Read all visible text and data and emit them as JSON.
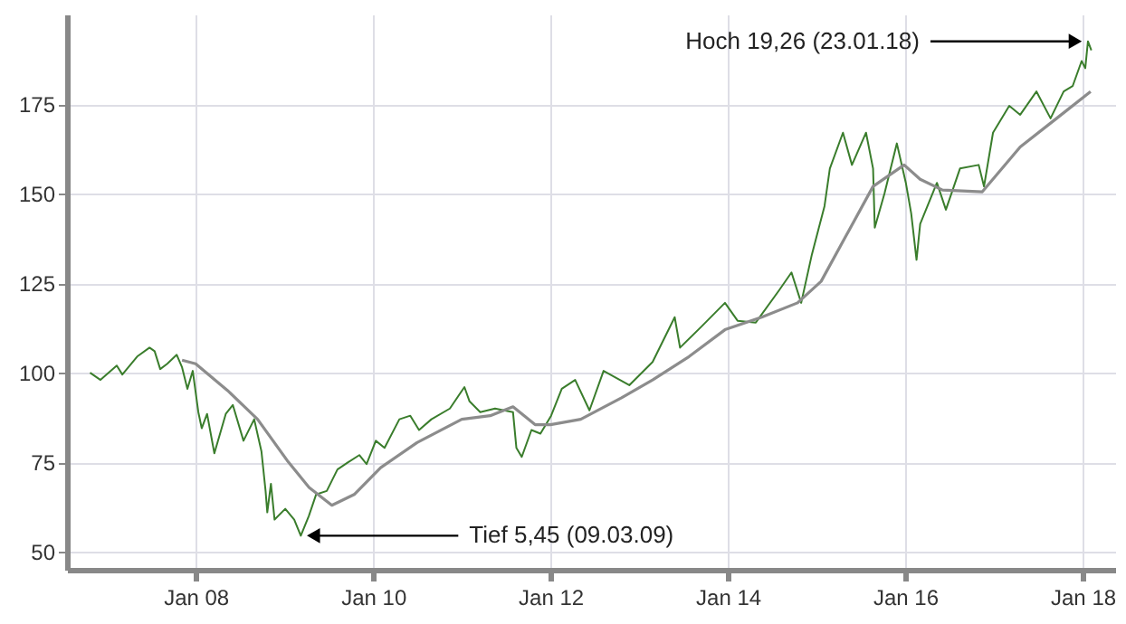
{
  "chart_data": {
    "type": "line",
    "xlim": [
      "2006-07-20",
      "2018-05-15"
    ],
    "xticks": [
      {
        "value": "2008-01-01",
        "label": "Jan 08"
      },
      {
        "value": "2010-01-01",
        "label": "Jan 10"
      },
      {
        "value": "2012-01-01",
        "label": "Jan 12"
      },
      {
        "value": "2014-01-01",
        "label": "Jan 14"
      },
      {
        "value": "2016-01-01",
        "label": "Jan 16"
      },
      {
        "value": "2018-01-01",
        "label": "Jan 18"
      }
    ],
    "ylim": [
      45,
      200
    ],
    "yticks": [
      50,
      75,
      100,
      125,
      150,
      175
    ],
    "grid": true,
    "annotations": [
      {
        "text": "Hoch 19,26 (23.01.18)",
        "x": "2018-01-23",
        "y": 192.5
      },
      {
        "text": "Tief 5,45 (09.03.09)",
        "x": "2009-03-09",
        "y": 54.5
      }
    ],
    "series": [
      {
        "color": "#3a7d2c",
        "x": [
          "2006-10-23",
          "2006-12-05",
          "2007-02-10",
          "2007-03-05",
          "2007-05-05",
          "2007-06-25",
          "2007-07-16",
          "2007-08-08",
          "2007-09-06",
          "2007-10-15",
          "2007-11-06",
          "2007-11-28",
          "2007-12-20",
          "2008-01-12",
          "2008-01-26",
          "2008-02-17",
          "2008-03-18",
          "2008-05-04",
          "2008-06-02",
          "2008-07-16",
          "2008-08-29",
          "2008-09-28",
          "2008-10-15",
          "2008-10-22",
          "2008-11-06",
          "2008-11-21",
          "2009-01-04",
          "2009-02-10",
          "2009-03-09",
          "2009-04-11",
          "2009-05-11",
          "2009-06-24",
          "2009-08-07",
          "2009-09-20",
          "2009-11-05",
          "2009-12-05",
          "2010-01-12",
          "2010-02-17",
          "2010-04-19",
          "2010-06-03",
          "2010-07-09",
          "2010-08-29",
          "2010-11-13",
          "2011-01-12",
          "2011-02-02",
          "2011-03-18",
          "2011-05-18",
          "2011-07-31",
          "2011-08-14",
          "2011-09-05",
          "2011-10-15",
          "2011-11-21",
          "2012-01-04",
          "2012-02-17",
          "2012-04-12",
          "2012-06-10",
          "2012-08-07",
          "2012-11-21",
          "2013-02-25",
          "2013-05-27",
          "2013-06-18",
          "2013-09-16",
          "2013-12-20",
          "2014-02-10",
          "2014-04-26",
          "2014-07-31",
          "2014-09-20",
          "2014-10-30",
          "2014-12-13",
          "2015-02-03",
          "2015-02-25",
          "2015-04-20",
          "2015-05-27",
          "2015-07-24",
          "2015-08-22",
          "2015-08-29",
          "2015-10-08",
          "2015-11-28",
          "2016-01-04",
          "2016-01-26",
          "2016-02-17",
          "2016-03-03",
          "2016-05-11",
          "2016-06-17",
          "2016-08-14",
          "2016-10-30",
          "2016-11-21",
          "2016-12-28",
          "2017-03-05",
          "2017-04-19",
          "2017-06-25",
          "2017-08-22",
          "2017-10-15",
          "2017-11-21",
          "2017-12-28",
          "2018-01-12",
          "2018-01-23",
          "2018-02-06"
        ],
        "values": [
          100,
          98,
          102,
          99.5,
          104.5,
          107,
          106,
          101,
          102.5,
          105,
          101.5,
          95.5,
          100.5,
          89,
          84.5,
          88.5,
          77.5,
          88.5,
          91,
          81,
          87,
          78,
          67,
          61,
          69,
          59,
          62,
          59,
          54.5,
          60,
          66,
          67,
          73,
          75,
          77,
          74.5,
          81,
          79,
          87,
          88,
          84,
          87,
          90,
          96,
          92,
          89,
          90,
          89,
          79,
          76.5,
          84,
          83,
          88,
          95.5,
          98,
          89.5,
          100.5,
          96.5,
          103,
          115.5,
          107,
          113,
          119.5,
          114.5,
          114,
          123,
          128,
          119.5,
          133,
          146.5,
          157,
          167,
          158,
          167,
          157,
          140.5,
          150,
          164,
          153,
          144.5,
          131.5,
          141.5,
          153,
          145.5,
          157,
          158,
          152,
          167,
          174.5,
          172,
          178.5,
          171,
          178.5,
          180,
          187,
          185,
          192.5,
          190
        ]
      },
      {
        "color": "#8c8c8c",
        "x": [
          "2007-11-06",
          "2008-01-01",
          "2008-05-12",
          "2008-09-12",
          "2009-01-12",
          "2009-04-12",
          "2009-07-15",
          "2009-10-15",
          "2010-02-01",
          "2010-07-01",
          "2011-01-01",
          "2011-04-28",
          "2011-07-31",
          "2011-10-30",
          "2012-01-01",
          "2012-05-05",
          "2012-10-20",
          "2013-02-25",
          "2013-07-25",
          "2013-12-20",
          "2014-05-20",
          "2014-10-15",
          "2015-01-20",
          "2015-05-01",
          "2015-08-22",
          "2015-12-28",
          "2016-03-03",
          "2016-06-03",
          "2016-11-14",
          "2017-04-19",
          "2017-09-16",
          "2018-02-03"
        ],
        "values": [
          103.5,
          102.5,
          95,
          87,
          75.5,
          68,
          63,
          66,
          73.5,
          80.5,
          87,
          88,
          90.5,
          85.5,
          85.5,
          87,
          93,
          98,
          104.5,
          112,
          115.5,
          119.5,
          125.5,
          138,
          152,
          158,
          154,
          151,
          150.5,
          163,
          171,
          178.5
        ]
      }
    ]
  }
}
